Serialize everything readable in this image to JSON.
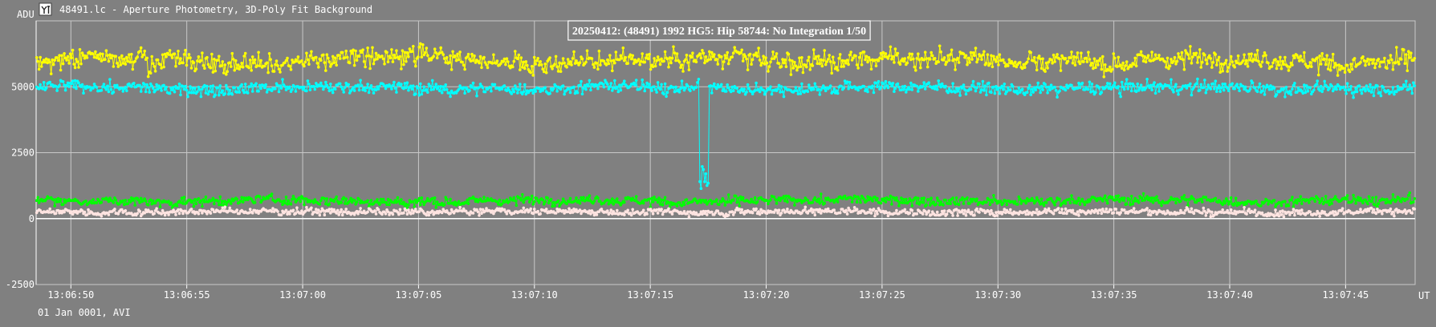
{
  "window": {
    "title": "48491.lc - Aperture Photometry, 3D-Poly Fit Background",
    "app_icon": "lightcurve-app-icon"
  },
  "footer": {
    "date_label": "01 Jan 0001, AVI"
  },
  "colors": {
    "background": "#808080",
    "grid": "#c8c8c8",
    "axis": "#ffffff",
    "text": "#ffffff",
    "series_yellow": "#ffff00",
    "series_cyan": "#00ffff",
    "series_green": "#00ff00",
    "series_pink": "#ffe4e1"
  },
  "chart_data": {
    "type": "scatter",
    "title": "20250412: (48491) 1992 HG5: Hip 58744: No Integration 1/50",
    "ylabel": "ADU",
    "xlabel": "UT",
    "ylim": [
      -2500,
      7500
    ],
    "yticks": [
      -2500,
      0,
      2500,
      5000
    ],
    "ytick_labels": [
      "-2500",
      "0",
      "2500",
      "5000"
    ],
    "xlim": [
      "13:06:48.5",
      "13:07:48.0"
    ],
    "xticks": [
      "13:06:50",
      "13:06:55",
      "13:07:00",
      "13:07:05",
      "13:07:10",
      "13:07:15",
      "13:07:20",
      "13:07:25",
      "13:07:30",
      "13:07:35",
      "13:07:40",
      "13:07:45"
    ],
    "grid": true,
    "series": [
      {
        "color": "#ffff00",
        "style": "points-and-lines",
        "level": 6000,
        "scatter": 320
      },
      {
        "color": "#00ffff",
        "style": "points-and-lines",
        "level": 4950,
        "scatter": 200,
        "event": {
          "start": "13:07:17.1",
          "end": "13:07:17.5",
          "min": 1100
        }
      },
      {
        "color": "#00ff00",
        "style": "points-and-lines",
        "level": 680,
        "scatter": 150
      },
      {
        "color": "#ffe4e1",
        "style": "points-and-lines",
        "level": 260,
        "scatter": 110
      }
    ]
  }
}
